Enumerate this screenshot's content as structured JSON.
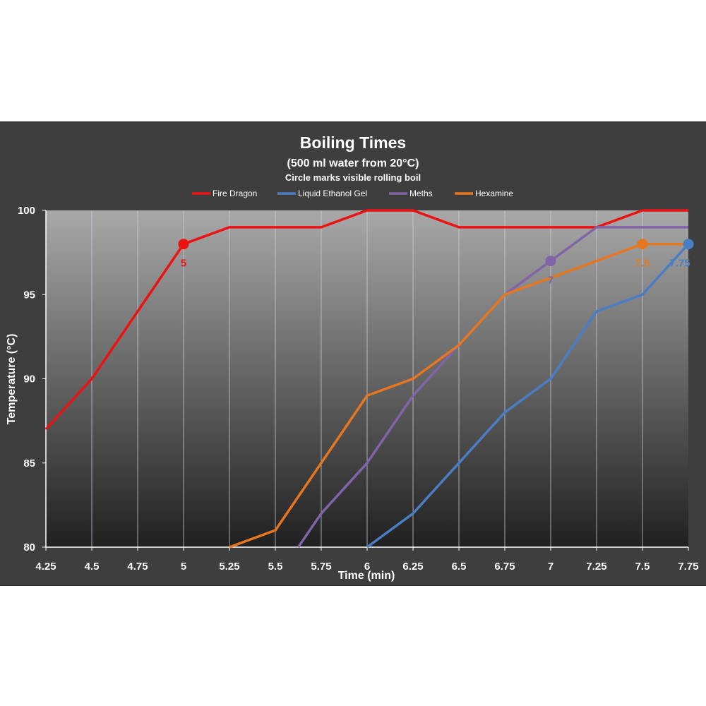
{
  "chart_data": {
    "type": "line",
    "title": "Boiling Times",
    "subtitle": "(500 ml water from 20°C)",
    "subtitle2": "Circle marks visible rolling boil",
    "xlabel": "Time (min)",
    "ylabel": "Temperature (°C)",
    "xlim": [
      4.25,
      7.75
    ],
    "ylim": [
      80,
      100
    ],
    "x_ticks": [
      "4.25",
      "4.5",
      "4.75",
      "5",
      "5.25",
      "5.5",
      "5.75",
      "6",
      "6.25",
      "6.5",
      "6.75",
      "7",
      "7.25",
      "7.5",
      "7.75"
    ],
    "y_ticks": [
      "80",
      "85",
      "90",
      "95",
      "100"
    ],
    "grid": "vertical",
    "legend_position": "top",
    "series": [
      {
        "name": "Fire Dragon",
        "color": "#ee1111",
        "points": [
          [
            4.25,
            87
          ],
          [
            4.5,
            90
          ],
          [
            4.75,
            94
          ],
          [
            5,
            98
          ],
          [
            5.25,
            99
          ],
          [
            5.5,
            99
          ],
          [
            5.75,
            99
          ],
          [
            6,
            100
          ],
          [
            6.25,
            100
          ],
          [
            6.5,
            99
          ],
          [
            6.75,
            99
          ],
          [
            7,
            99
          ],
          [
            7.25,
            99
          ],
          [
            7.5,
            100
          ],
          [
            7.75,
            100
          ]
        ],
        "boil_marker": {
          "x": 5,
          "y": 98,
          "label": "5"
        }
      },
      {
        "name": "Liquid Ethanol Gel",
        "color": "#4a7ec4",
        "points": [
          [
            6,
            80
          ],
          [
            6.25,
            82
          ],
          [
            6.5,
            85
          ],
          [
            6.75,
            88
          ],
          [
            7,
            90
          ],
          [
            7.25,
            94
          ],
          [
            7.5,
            95
          ],
          [
            7.75,
            98
          ]
        ],
        "boil_marker": {
          "x": 7.75,
          "y": 98,
          "label": "7.75"
        }
      },
      {
        "name": "Meths",
        "color": "#8064a8",
        "points": [
          [
            5.625,
            80
          ],
          [
            5.75,
            82
          ],
          [
            6,
            85
          ],
          [
            6.25,
            89
          ],
          [
            6.5,
            92
          ],
          [
            6.75,
            95
          ],
          [
            7,
            97
          ],
          [
            7.25,
            99
          ],
          [
            7.5,
            99
          ],
          [
            7.75,
            99
          ]
        ],
        "boil_marker": {
          "x": 7,
          "y": 97,
          "label": "7"
        }
      },
      {
        "name": "Hexamine",
        "color": "#e8761e",
        "points": [
          [
            5.25,
            80
          ],
          [
            5.5,
            81
          ],
          [
            5.75,
            85
          ],
          [
            6,
            89
          ],
          [
            6.25,
            90
          ],
          [
            6.5,
            92
          ],
          [
            6.75,
            95
          ],
          [
            7,
            96
          ],
          [
            7.25,
            97
          ],
          [
            7.5,
            98
          ],
          [
            7.75,
            98
          ]
        ],
        "boil_marker": {
          "x": 7.5,
          "y": 98,
          "label": "7.5"
        }
      }
    ]
  }
}
